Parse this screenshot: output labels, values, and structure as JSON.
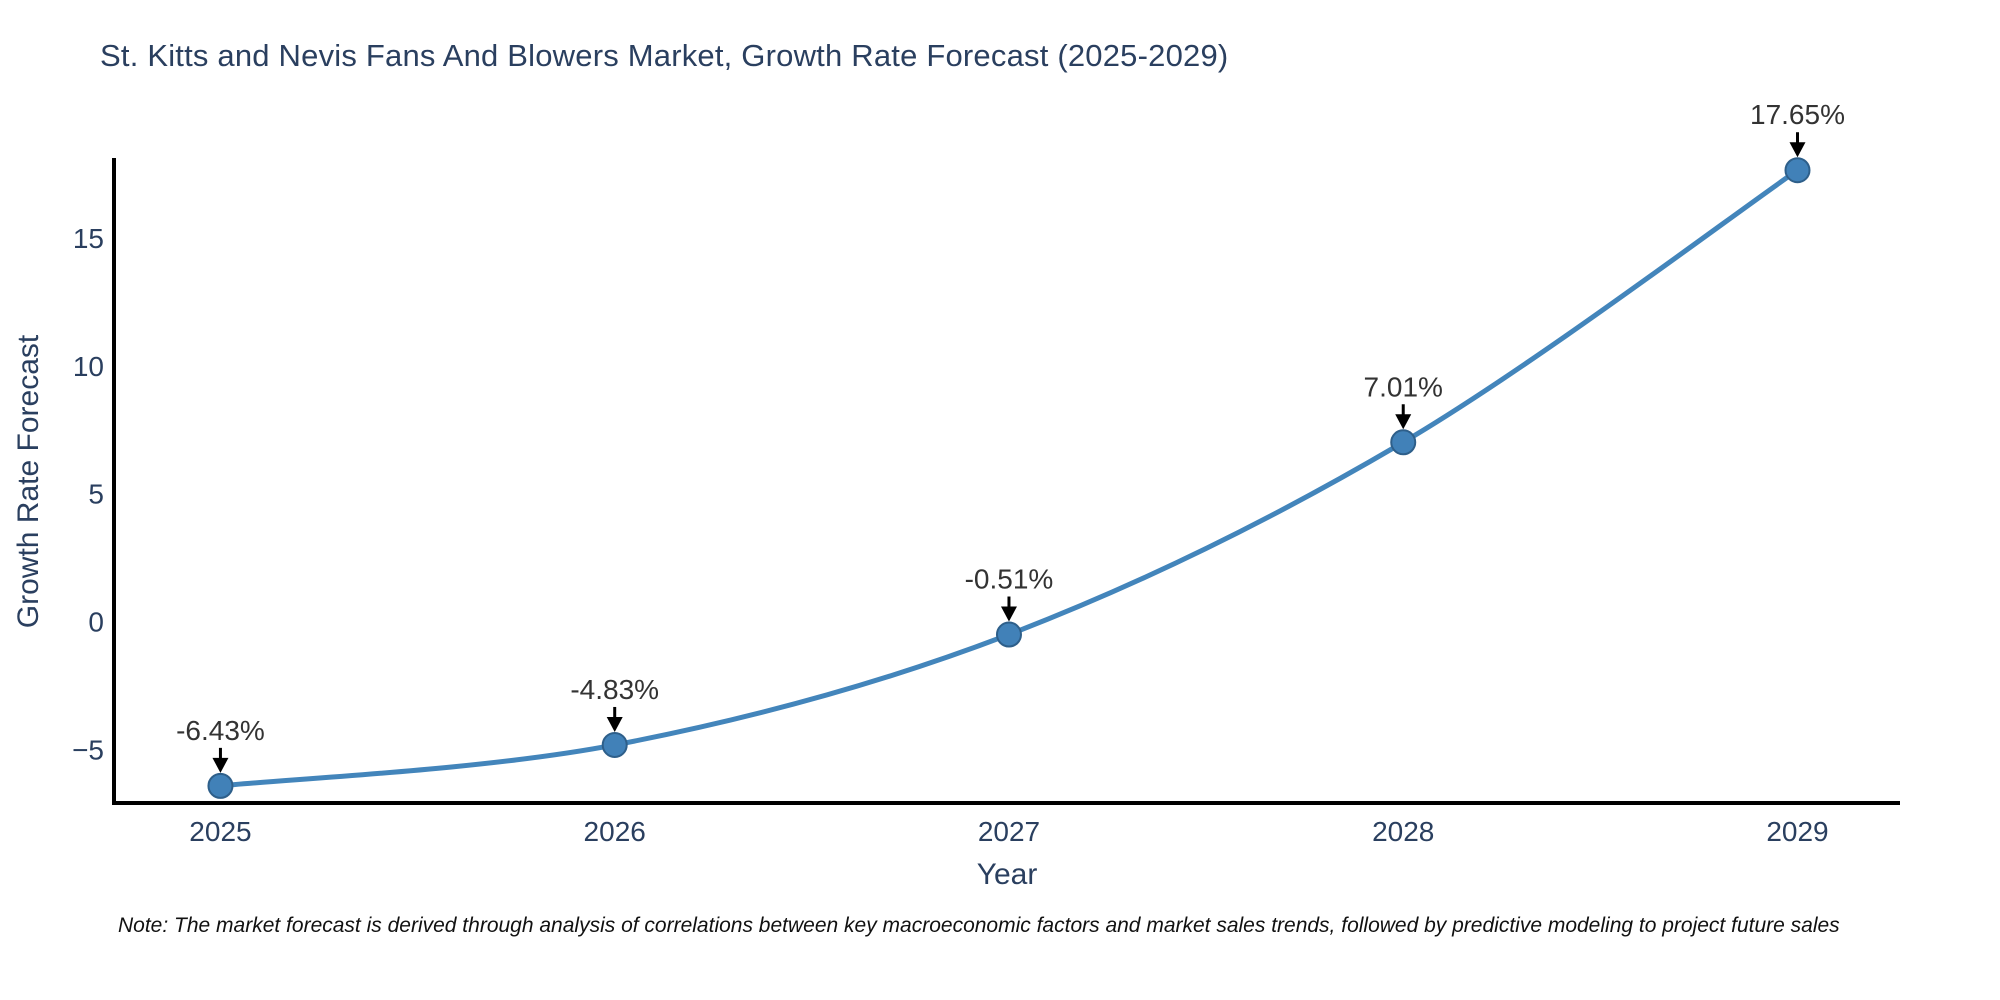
{
  "title": "St. Kitts and Nevis Fans And Blowers Market, Growth Rate Forecast (2025-2029)",
  "note": "Note: The market forecast is derived through analysis of correlations between key macroeconomic factors and market sales trends, followed by predictive modeling to project future sales",
  "chart_data": {
    "type": "line",
    "title": "St. Kitts and Nevis Fans And Blowers Market, Growth Rate Forecast (2025-2029)",
    "xlabel": "Year",
    "ylabel": "Growth Rate Forecast",
    "x": [
      2025,
      2026,
      2027,
      2028,
      2029
    ],
    "values": [
      -6.43,
      -4.83,
      -0.51,
      7.01,
      17.65
    ],
    "point_labels": [
      "-6.43%",
      "-4.83%",
      "-0.51%",
      "7.01%",
      "17.65%"
    ],
    "x_tick_labels": [
      "2025",
      "2026",
      "2027",
      "2028",
      "2029"
    ],
    "y_ticks": [
      15,
      10,
      5,
      0,
      -5
    ],
    "y_tick_labels": [
      "15",
      "10",
      "5",
      "0",
      "−5"
    ],
    "xlim": [
      2024.73,
      2029.26
    ],
    "ylim": [
      -7.1,
      18.05
    ],
    "grid": false,
    "legend_position": "none",
    "marker_style": "circle",
    "annotation_arrows": true,
    "colors": {
      "line": "#4385bb",
      "marker_fill": "#4181b8",
      "marker_border": "#2e5f8a",
      "axis": "#000000",
      "tick_text": "#2a3f5f",
      "axis_title_text": "#2a3f5f",
      "annotation_text": "#333333",
      "annotation_arrow": "#000000",
      "background": "#ffffff"
    }
  }
}
